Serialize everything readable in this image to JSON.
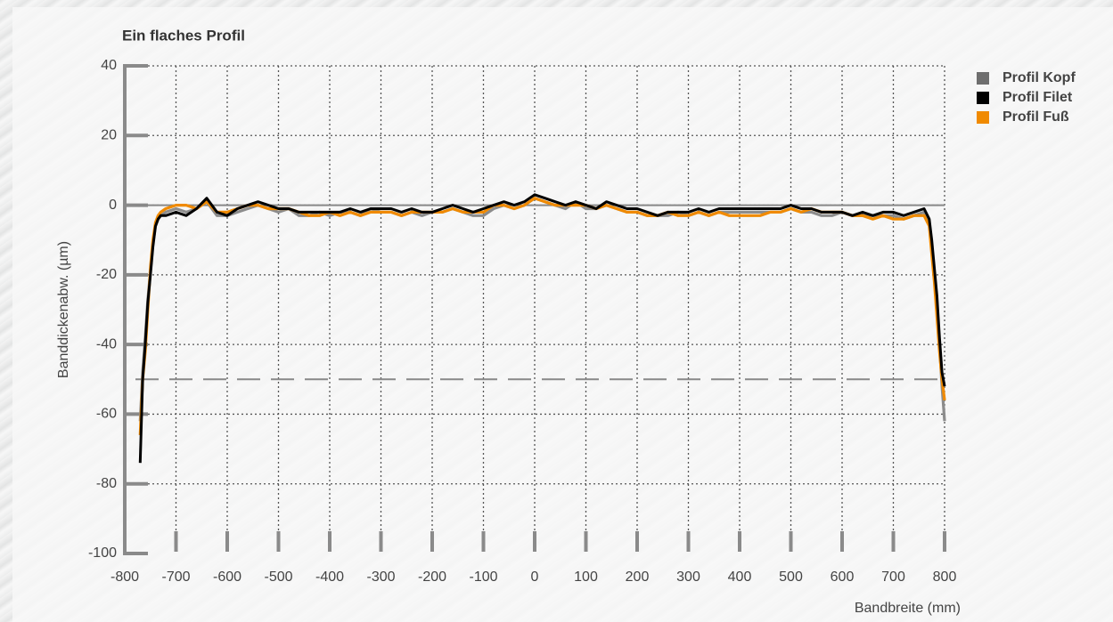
{
  "chart_data": {
    "type": "line",
    "title": "Ein flaches Profil",
    "x_label": "Bandbreite (mm)",
    "y_label": "Banddickenabw. (µm)",
    "x": [
      -770,
      -765,
      -760,
      -755,
      -750,
      -745,
      -740,
      -735,
      -730,
      -720,
      -700,
      -680,
      -660,
      -640,
      -620,
      -600,
      -580,
      -560,
      -540,
      -520,
      -500,
      -480,
      -460,
      -440,
      -420,
      -400,
      -380,
      -360,
      -340,
      -320,
      -300,
      -280,
      -260,
      -240,
      -220,
      -200,
      -180,
      -160,
      -140,
      -120,
      -100,
      -80,
      -60,
      -40,
      -20,
      0,
      20,
      40,
      60,
      80,
      100,
      120,
      140,
      160,
      180,
      200,
      220,
      240,
      260,
      280,
      300,
      320,
      340,
      360,
      380,
      400,
      420,
      440,
      460,
      480,
      500,
      520,
      540,
      560,
      580,
      600,
      620,
      640,
      660,
      680,
      700,
      720,
      740,
      760,
      770,
      775,
      780,
      785,
      790,
      795,
      800
    ],
    "series": [
      {
        "name": "Profil Kopf",
        "color": "#8c8c8c",
        "legend_color": "#6e6e6e",
        "values": [
          -62,
          -48,
          -38,
          -27,
          -19,
          -11,
          -6,
          -4,
          -3,
          -2,
          -1,
          -2,
          -1,
          1,
          -3,
          -3,
          -2,
          -1,
          0,
          -1,
          -2,
          -1,
          -3,
          -3,
          -2,
          -3,
          -2,
          -2,
          -3,
          -1,
          -2,
          -2,
          -3,
          -2,
          -3,
          -2,
          -2,
          -1,
          -2,
          -3,
          -3,
          -1,
          0,
          -1,
          0,
          2,
          1,
          0,
          -1,
          1,
          -1,
          -1,
          0,
          -1,
          -2,
          -2,
          -3,
          -3,
          -3,
          -2,
          -3,
          -2,
          -3,
          -2,
          -2,
          -2,
          -2,
          -2,
          -2,
          -2,
          -1,
          -2,
          -2,
          -3,
          -3,
          -2,
          -3,
          -3,
          -3,
          -3,
          -3,
          -4,
          -3,
          -2,
          -5,
          -12,
          -20,
          -30,
          -40,
          -52,
          -62
        ]
      },
      {
        "name": "Profil Fuß",
        "color": "#f08a00",
        "values": [
          -66,
          -50,
          -42,
          -30,
          -18,
          -10,
          -5,
          -3,
          -2,
          -1,
          0,
          0,
          -1,
          1,
          -2,
          -2,
          -1,
          0,
          0,
          -1,
          -1,
          -1,
          -2,
          -3,
          -3,
          -2,
          -3,
          -2,
          -3,
          -2,
          -2,
          -2,
          -3,
          -2,
          -2,
          -2,
          -2,
          -1,
          -2,
          -2,
          -2,
          0,
          0,
          -1,
          0,
          2,
          1,
          0,
          0,
          0,
          0,
          -1,
          0,
          -1,
          -2,
          -2,
          -3,
          -3,
          -2,
          -3,
          -3,
          -2,
          -3,
          -2,
          -3,
          -3,
          -3,
          -3,
          -2,
          -2,
          -1,
          -2,
          -1,
          -2,
          -2,
          -2,
          -3,
          -3,
          -4,
          -3,
          -4,
          -4,
          -3,
          -3,
          -6,
          -14,
          -22,
          -32,
          -42,
          -50,
          -56
        ]
      },
      {
        "name": "Profil Filet",
        "color": "#000000",
        "values": [
          -74,
          -50,
          -40,
          -28,
          -20,
          -12,
          -6,
          -4,
          -3,
          -3,
          -2,
          -3,
          -1,
          2,
          -2,
          -3,
          -1,
          0,
          1,
          0,
          -1,
          -1,
          -2,
          -2,
          -2,
          -2,
          -2,
          -1,
          -2,
          -1,
          -1,
          -1,
          -2,
          -1,
          -2,
          -2,
          -1,
          0,
          -1,
          -2,
          -1,
          0,
          1,
          0,
          1,
          3,
          2,
          1,
          0,
          1,
          0,
          -1,
          1,
          0,
          -1,
          -1,
          -2,
          -3,
          -2,
          -2,
          -2,
          -1,
          -2,
          -1,
          -1,
          -1,
          -1,
          -1,
          -1,
          -1,
          0,
          -1,
          -1,
          -2,
          -2,
          -2,
          -3,
          -2,
          -3,
          -2,
          -2,
          -3,
          -2,
          -1,
          -4,
          -10,
          -18,
          -26,
          -38,
          -48,
          -52
        ]
      }
    ],
    "legend_order": [
      0,
      2,
      1
    ],
    "xlim": [
      -800,
      800
    ],
    "ylim": [
      -100,
      40
    ],
    "xticks": [
      -800,
      -700,
      -600,
      -500,
      -400,
      -300,
      -200,
      -100,
      0,
      100,
      200,
      300,
      400,
      500,
      600,
      700,
      800
    ],
    "yticks": [
      -100,
      -80,
      -60,
      -40,
      -20,
      0,
      20,
      40
    ],
    "grid": true,
    "hlines": [
      {
        "value": 0,
        "style": "solid"
      },
      {
        "value": -50,
        "style": "dashed"
      }
    ]
  }
}
